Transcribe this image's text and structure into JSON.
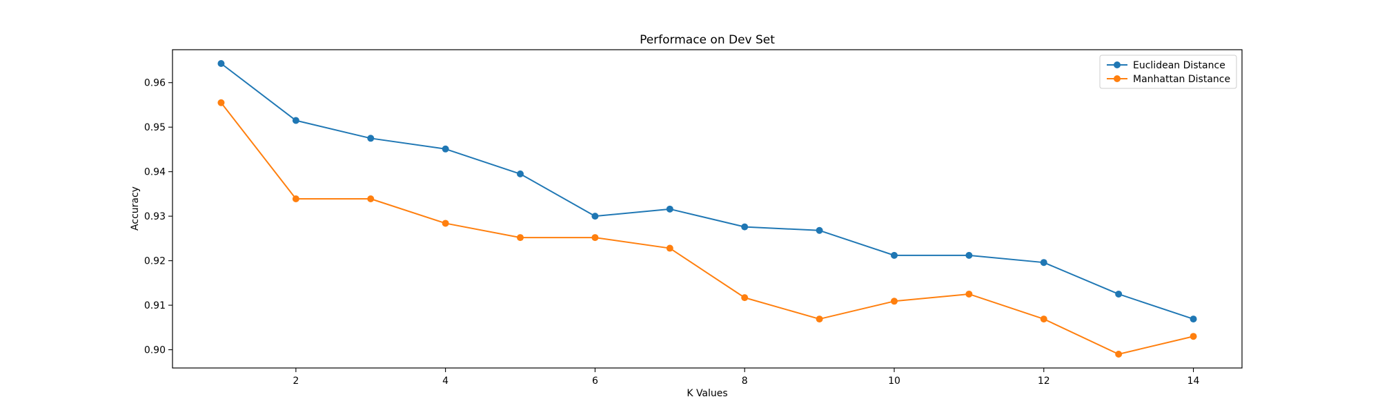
{
  "chart_data": {
    "type": "line",
    "title": "Performace on Dev Set",
    "xlabel": "K Values",
    "ylabel": "Accuracy",
    "xlim": [
      0.35,
      14.65
    ],
    "ylim": [
      0.8959,
      0.9674
    ],
    "x_ticks": [
      2,
      4,
      6,
      8,
      10,
      12,
      14
    ],
    "x_tick_labels": [
      "2",
      "4",
      "6",
      "8",
      "10",
      "12",
      "14"
    ],
    "y_ticks": [
      0.9,
      0.91,
      0.92,
      0.93,
      0.94,
      0.95,
      0.96
    ],
    "y_tick_labels": [
      "0.90",
      "0.91",
      "0.92",
      "0.93",
      "0.94",
      "0.95",
      "0.96"
    ],
    "grid": false,
    "legend_position": "top-right",
    "x": [
      1,
      2,
      3,
      4,
      5,
      6,
      7,
      8,
      9,
      10,
      11,
      12,
      13,
      14
    ],
    "series": [
      {
        "name": "Euclidean Distance",
        "color": "#1f77b4",
        "values": [
          0.9643,
          0.9515,
          0.9475,
          0.9451,
          0.9395,
          0.93,
          0.9316,
          0.9276,
          0.9268,
          0.9212,
          0.9212,
          0.9196,
          0.9125,
          0.9069
        ]
      },
      {
        "name": "Manhattan Distance",
        "color": "#ff7f0e",
        "values": [
          0.9555,
          0.9339,
          0.9339,
          0.9284,
          0.9252,
          0.9252,
          0.9228,
          0.9117,
          0.9069,
          0.9109,
          0.9125,
          0.9069,
          0.899,
          0.903
        ]
      }
    ]
  }
}
